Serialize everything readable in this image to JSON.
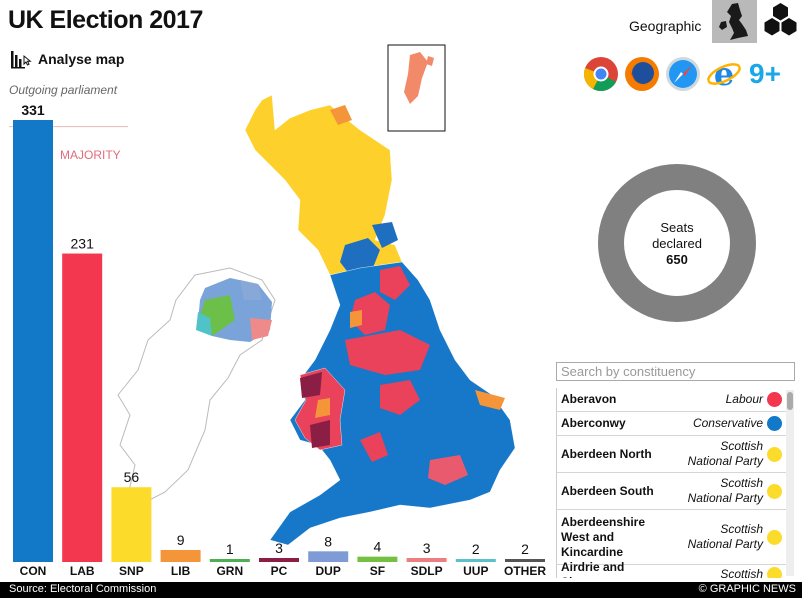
{
  "header": {
    "title": "UK Election 2017",
    "analyse_label": "Analyse map",
    "outgoing_label": "Outgoing parliament",
    "majority_label": "MAJORITY"
  },
  "view_toggle": {
    "label": "Geographic",
    "options": [
      "geographic-map-icon",
      "hexagon-map-icon"
    ],
    "selected": "geographic-map-icon"
  },
  "browsers": {
    "icons": [
      "chrome-icon",
      "firefox-icon",
      "safari-icon",
      "ie-icon"
    ],
    "ie_label": "9+"
  },
  "seats": {
    "label_line1": "Seats",
    "label_line2": "declared",
    "count": "650",
    "ring_color": "#808080"
  },
  "search": {
    "placeholder": "Search by constituency"
  },
  "constituencies": [
    {
      "name": "Aberavon",
      "party": "Labour",
      "color": "#f2374e"
    },
    {
      "name": "Aberconwy",
      "party": "Conservative",
      "color": "#1279c8"
    },
    {
      "name": "Aberdeen North",
      "party": "Scottish National Party",
      "color": "#fddb2b"
    },
    {
      "name": "Aberdeen South",
      "party": "Scottish National Party",
      "color": "#fddb2b"
    },
    {
      "name": "Aberdeenshire West and Kincardine",
      "party": "Scottish National Party",
      "color": "#fddb2b"
    },
    {
      "name": "Airdrie and Shotts",
      "party": "Scottish",
      "color": "#fddb2b"
    }
  ],
  "chart_data": {
    "type": "bar",
    "categories": [
      "CON",
      "LAB",
      "SNP",
      "LIB",
      "GRN",
      "PC",
      "DUP",
      "SF",
      "SDLP",
      "UUP",
      "OTHER"
    ],
    "values": [
      331,
      231,
      56,
      9,
      1,
      3,
      8,
      4,
      3,
      2,
      2
    ],
    "colors": [
      "#1279c8",
      "#f2374e",
      "#fddb2b",
      "#f5953a",
      "#4caf50",
      "#8b1e45",
      "#7f9bd6",
      "#75c043",
      "#ec7f7e",
      "#5bc0c8",
      "#555555"
    ],
    "majority_line": 326,
    "title": "",
    "xlabel": "",
    "ylabel": ""
  },
  "footer": {
    "source": "Source: Electoral Commission",
    "copyright": "© GRAPHIC NEWS"
  }
}
